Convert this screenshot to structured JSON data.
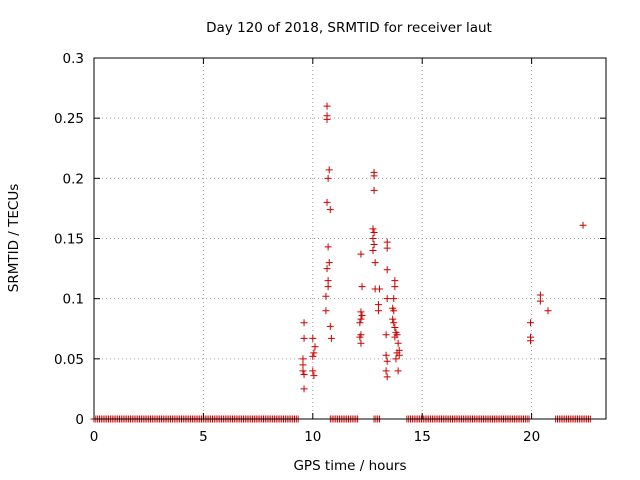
{
  "chart_data": {
    "type": "scatter",
    "title": "Day 120 of 2018, SRMTID for receiver laut",
    "xlabel": "GPS time / hours",
    "ylabel": "SRMTID / TECUs",
    "xlim": [
      0,
      23.4
    ],
    "ylim": [
      0,
      0.3
    ],
    "xticks": [
      "0",
      "5",
      "10",
      "15",
      "20"
    ],
    "yticks": [
      "0",
      "0.05",
      "0.1",
      "0.15",
      "0.2",
      "0.25",
      "0.3"
    ],
    "grid": true,
    "marker": "+",
    "color": "#cc0000",
    "baseline": {
      "y": 0,
      "segments": [
        [
          0.0,
          9.4
        ],
        [
          10.8,
          12.1
        ],
        [
          12.8,
          13.1
        ],
        [
          14.3,
          19.9
        ],
        [
          21.1,
          22.7
        ]
      ],
      "step": 0.0833
    },
    "series": [
      {
        "points": [
          [
            9.6,
            0.08
          ],
          [
            9.6,
            0.067
          ],
          [
            9.55,
            0.05
          ],
          [
            9.55,
            0.045
          ],
          [
            9.55,
            0.04
          ],
          [
            9.6,
            0.037
          ],
          [
            9.6,
            0.025
          ],
          [
            10.0,
            0.067
          ],
          [
            10.1,
            0.06
          ],
          [
            10.05,
            0.055
          ],
          [
            10.0,
            0.052
          ],
          [
            10.0,
            0.04
          ],
          [
            10.05,
            0.036
          ],
          [
            10.65,
            0.26
          ],
          [
            10.65,
            0.252
          ],
          [
            10.65,
            0.249
          ],
          [
            10.75,
            0.207
          ],
          [
            10.7,
            0.2
          ],
          [
            10.65,
            0.18
          ],
          [
            10.8,
            0.174
          ],
          [
            10.7,
            0.143
          ],
          [
            10.75,
            0.13
          ],
          [
            10.65,
            0.125
          ],
          [
            10.7,
            0.115
          ],
          [
            10.7,
            0.11
          ],
          [
            10.6,
            0.102
          ],
          [
            10.6,
            0.09
          ],
          [
            10.8,
            0.077
          ],
          [
            10.85,
            0.067
          ],
          [
            12.2,
            0.137
          ],
          [
            12.25,
            0.11
          ],
          [
            12.2,
            0.089
          ],
          [
            12.25,
            0.086
          ],
          [
            12.2,
            0.083
          ],
          [
            12.15,
            0.08
          ],
          [
            12.2,
            0.07
          ],
          [
            12.15,
            0.068
          ],
          [
            12.2,
            0.063
          ],
          [
            12.8,
            0.205
          ],
          [
            12.8,
            0.202
          ],
          [
            12.8,
            0.19
          ],
          [
            12.75,
            0.158
          ],
          [
            12.8,
            0.155
          ],
          [
            12.75,
            0.15
          ],
          [
            12.8,
            0.145
          ],
          [
            12.75,
            0.14
          ],
          [
            12.85,
            0.13
          ],
          [
            12.85,
            0.108
          ],
          [
            13.05,
            0.108
          ],
          [
            13.0,
            0.095
          ],
          [
            13.0,
            0.09
          ],
          [
            13.4,
            0.147
          ],
          [
            13.4,
            0.142
          ],
          [
            13.4,
            0.124
          ],
          [
            13.4,
            0.1
          ],
          [
            13.35,
            0.07
          ],
          [
            13.35,
            0.053
          ],
          [
            13.4,
            0.048
          ],
          [
            13.35,
            0.04
          ],
          [
            13.4,
            0.035
          ],
          [
            13.75,
            0.115
          ],
          [
            13.75,
            0.11
          ],
          [
            13.7,
            0.1
          ],
          [
            13.65,
            0.092
          ],
          [
            13.7,
            0.09
          ],
          [
            13.65,
            0.083
          ],
          [
            13.7,
            0.08
          ],
          [
            13.75,
            0.076
          ],
          [
            13.8,
            0.072
          ],
          [
            13.85,
            0.07
          ],
          [
            13.75,
            0.068
          ],
          [
            13.9,
            0.063
          ],
          [
            13.95,
            0.057
          ],
          [
            13.85,
            0.055
          ],
          [
            13.95,
            0.053
          ],
          [
            13.8,
            0.05
          ],
          [
            13.9,
            0.04
          ],
          [
            19.95,
            0.08
          ],
          [
            19.95,
            0.068
          ],
          [
            19.95,
            0.065
          ],
          [
            20.4,
            0.103
          ],
          [
            20.4,
            0.098
          ],
          [
            20.75,
            0.09
          ],
          [
            22.35,
            0.161
          ]
        ]
      }
    ]
  }
}
